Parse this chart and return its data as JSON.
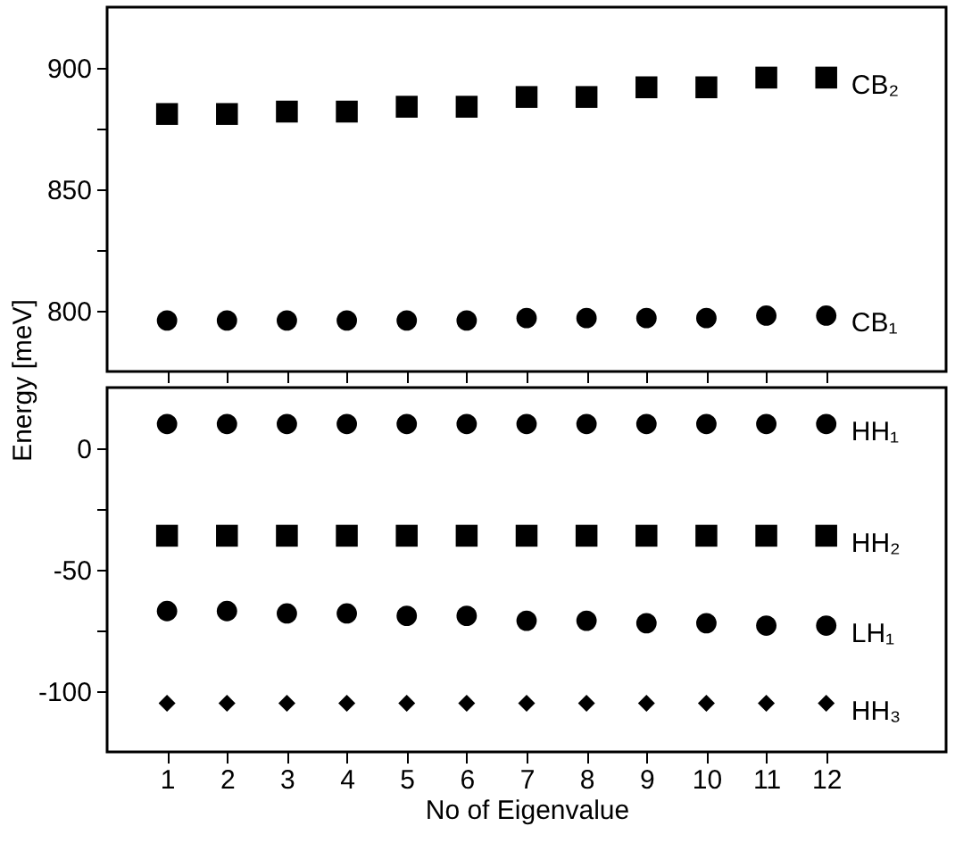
{
  "chart_data": [
    {
      "type": "scatter",
      "ylabel": "Energy [meV]",
      "x": [
        1,
        2,
        3,
        4,
        5,
        6,
        7,
        8,
        9,
        10,
        11,
        12
      ],
      "xlim": [
        0,
        14
      ],
      "xticks": [
        1,
        2,
        3,
        4,
        5,
        6,
        7,
        8,
        9,
        10,
        11,
        12
      ],
      "ylim": [
        775,
        925
      ],
      "yticks": [
        800,
        {
          "value": 825,
          "label": null
        },
        850,
        {
          "value": 875,
          "label": null
        },
        900
      ],
      "tick_labels": "y",
      "series": [
        {
          "name": "CB₂",
          "color": "#000000",
          "marker": "square",
          "values": [
            881,
            881,
            882,
            882,
            884,
            884,
            888,
            888,
            892,
            892,
            896,
            896
          ]
        },
        {
          "name": "CB₁",
          "color": "#000000",
          "marker": "circle",
          "values": [
            796,
            796,
            796,
            796,
            796,
            796,
            797,
            797,
            797,
            797,
            798,
            798
          ]
        }
      ]
    },
    {
      "type": "scatter",
      "xlabel": "No of Eigenvalue",
      "x": [
        1,
        2,
        3,
        4,
        5,
        6,
        7,
        8,
        9,
        10,
        11,
        12
      ],
      "xlim": [
        0,
        14
      ],
      "xticks": [
        1,
        2,
        3,
        4,
        5,
        6,
        7,
        8,
        9,
        10,
        11,
        12
      ],
      "ylim": [
        -125,
        25
      ],
      "yticks": [
        -100,
        {
          "value": -75,
          "label": null
        },
        -50,
        {
          "value": -25,
          "label": null
        },
        0
      ],
      "series": [
        {
          "name": "HH₁",
          "color": "#000000",
          "marker": "circle",
          "values": [
            10,
            10,
            10,
            10,
            10,
            10,
            10,
            10,
            10,
            10,
            10,
            10
          ]
        },
        {
          "name": "HH₂",
          "color": "#000000",
          "marker": "square",
          "values": [
            -36,
            -36,
            -36,
            -36,
            -36,
            -36,
            -36,
            -36,
            -36,
            -36,
            -36,
            -36
          ]
        },
        {
          "name": "LH₁",
          "color": "#000000",
          "marker": "circle",
          "values": [
            -67,
            -67,
            -68,
            -68,
            -69,
            -69,
            -71,
            -71,
            -72,
            -72,
            -73,
            -73
          ]
        },
        {
          "name": "HH₃",
          "color": "#000000",
          "marker": "diamond",
          "values": [
            -105,
            -105,
            -105,
            -105,
            -105,
            -105,
            -105,
            -105,
            -105,
            -105,
            -105,
            -105
          ]
        }
      ]
    }
  ]
}
